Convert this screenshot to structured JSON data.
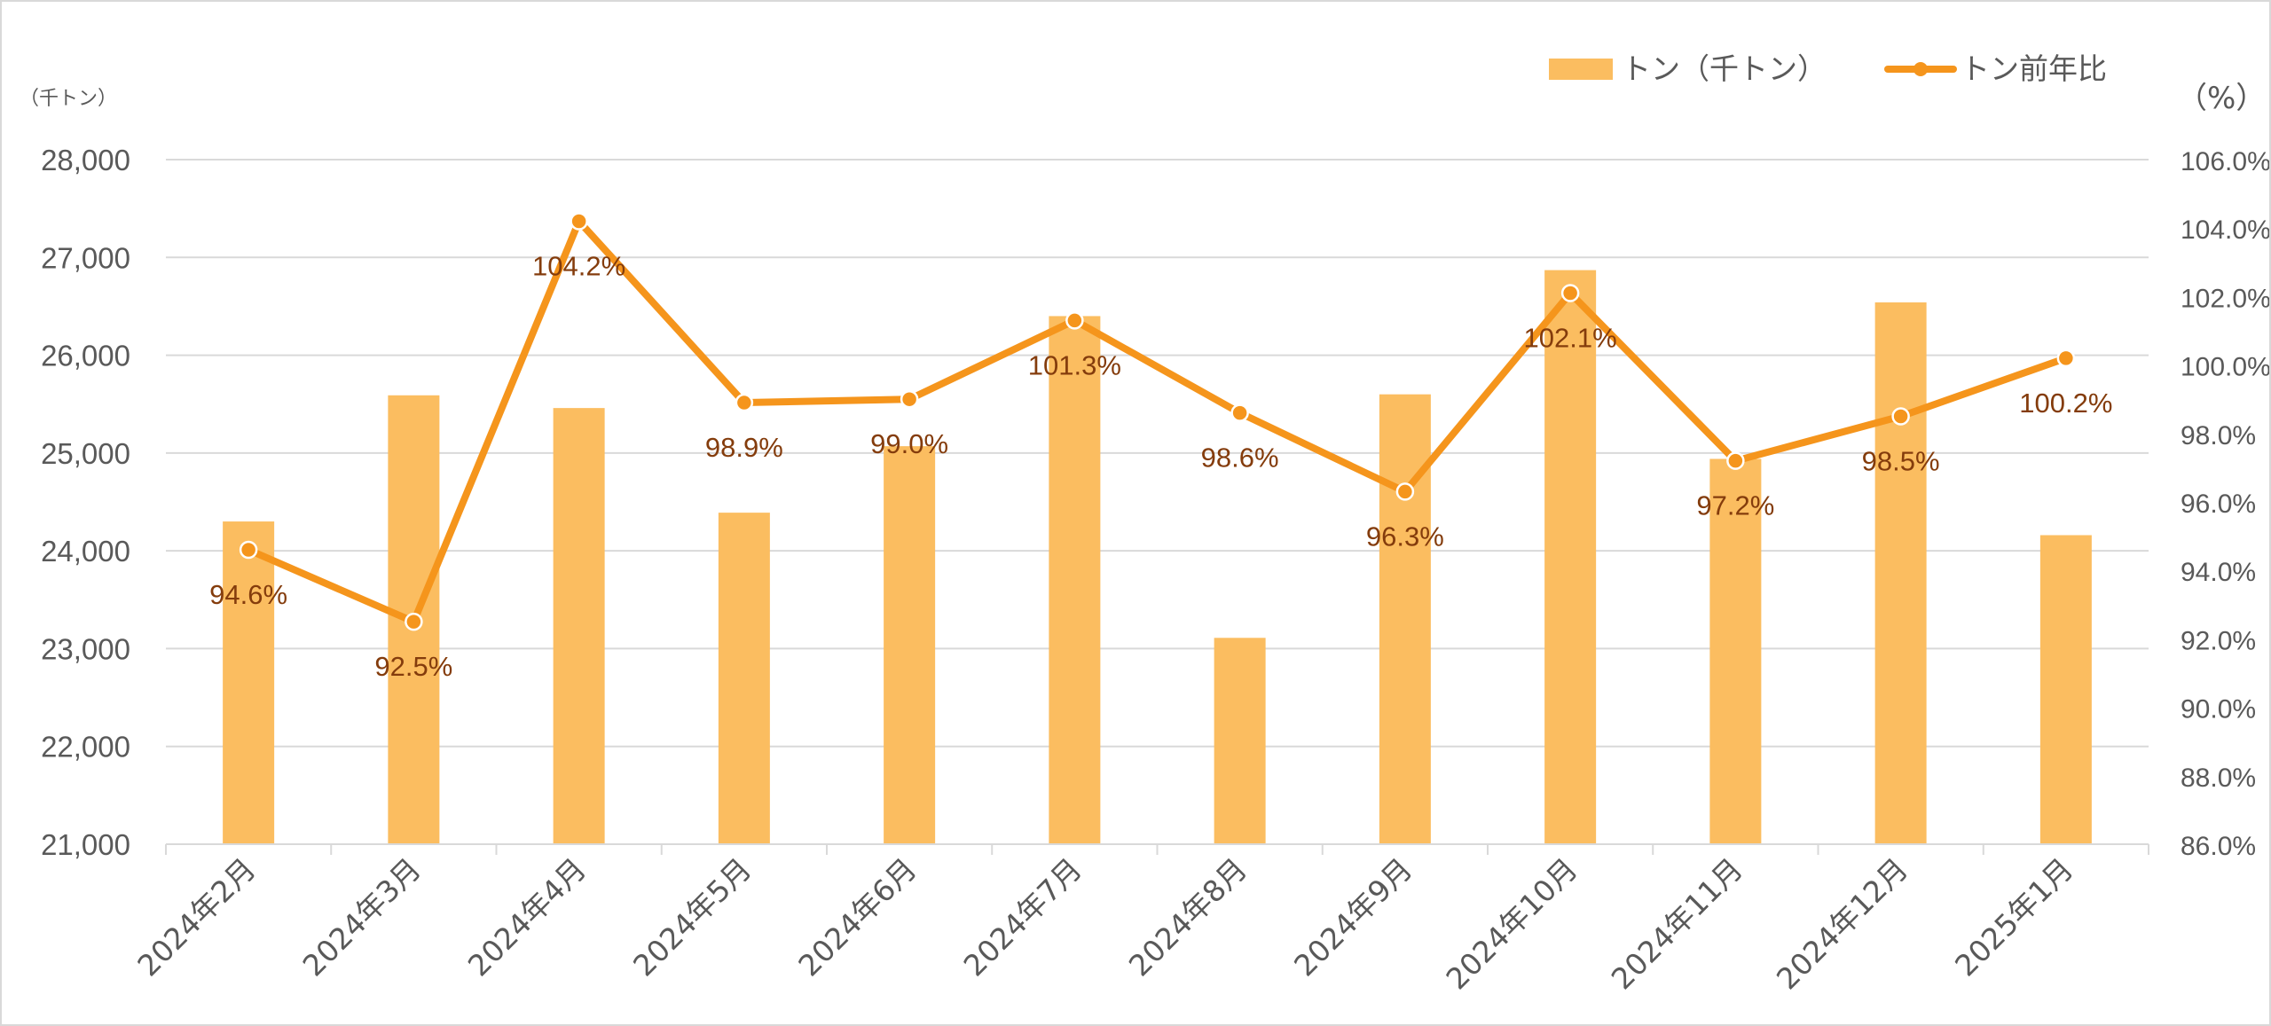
{
  "chart_data": {
    "type": "bar",
    "categories": [
      "2024年2月",
      "2024年3月",
      "2024年4月",
      "2024年5月",
      "2024年6月",
      "2024年7月",
      "2024年8月",
      "2024年9月",
      "2024年10月",
      "2024年11月",
      "2024年12月",
      "2025年1月"
    ],
    "series": [
      {
        "name": "トン（千トン）",
        "type": "bar",
        "axis": "left",
        "color": "#fbbd60",
        "values": [
          24300,
          25590,
          25460,
          24390,
          25070,
          26400,
          23110,
          25600,
          26870,
          24940,
          26540,
          24160
        ]
      },
      {
        "name": "トン前年比",
        "type": "line",
        "axis": "right",
        "color": "#f5951c",
        "values": [
          94.6,
          92.5,
          104.2,
          98.9,
          99.0,
          101.3,
          98.6,
          96.3,
          102.1,
          97.2,
          98.5,
          100.2
        ],
        "labels": [
          "94.6%",
          "92.5%",
          "104.2%",
          "98.9%",
          "99.0%",
          "101.3%",
          "98.6%",
          "96.3%",
          "102.1%",
          "97.2%",
          "98.5%",
          "100.2%"
        ]
      }
    ],
    "left_axis": {
      "unit_label": "（千トン）",
      "ylim": [
        21000,
        28000
      ],
      "ticks": [
        21000,
        22000,
        23000,
        24000,
        25000,
        26000,
        27000,
        28000
      ],
      "tick_labels": [
        "21,000",
        "22,000",
        "23,000",
        "24,000",
        "25,000",
        "26,000",
        "27,000",
        "28,000"
      ]
    },
    "right_axis": {
      "unit_label": "（%）",
      "ylim": [
        86,
        106
      ],
      "ticks": [
        86,
        88,
        90,
        92,
        94,
        96,
        98,
        100,
        102,
        104,
        106
      ],
      "tick_labels": [
        "86.0%",
        "88.0%",
        "90.0%",
        "92.0%",
        "94.0%",
        "96.0%",
        "98.0%",
        "100.0%",
        "102.0%",
        "104.0%",
        "106.0%"
      ]
    },
    "legend": {
      "position": "top-right",
      "items": [
        "トン（千トン）",
        "トン前年比"
      ]
    },
    "grid": true,
    "label_color": "#843c0c",
    "axis_text_color": "#595959",
    "grid_color": "#d9d9d9"
  }
}
